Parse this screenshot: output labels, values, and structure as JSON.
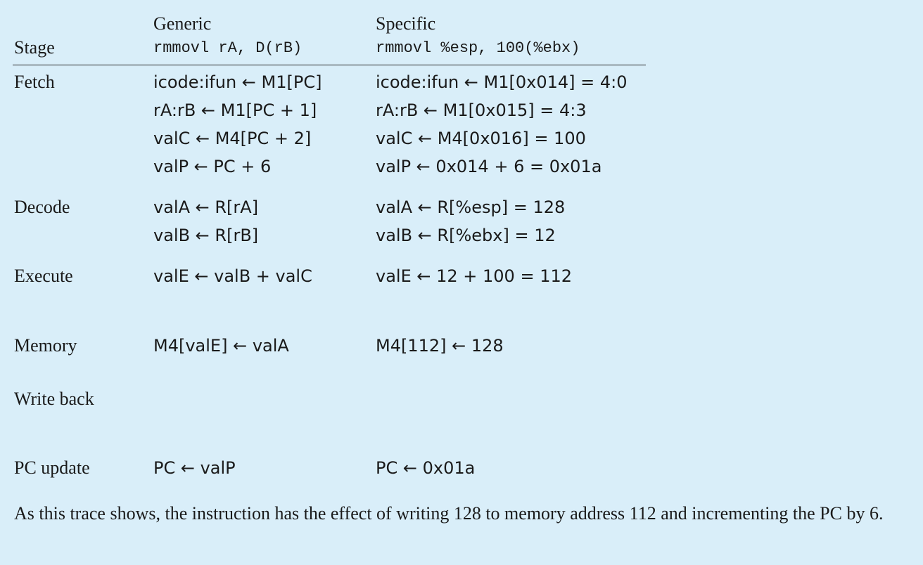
{
  "header": {
    "stage": "Stage",
    "generic_label": "Generic",
    "generic_instr": "rmmovl rA, D(rB)",
    "specific_label": "Specific",
    "specific_instr": "rmmovl %esp, 100(%ebx)"
  },
  "rows": [
    {
      "stage": "Fetch",
      "generic": [
        "icode:ifun ← M1[PC]",
        "rA:rB ← M1[PC + 1]",
        "valC ← M4[PC + 2]",
        "valP ← PC + 6"
      ],
      "specific": [
        "icode:ifun ← M1[0x014] = 4:0",
        "rA:rB ← M1[0x015] = 4:3",
        "valC ← M4[0x016] = 100",
        "valP ← 0x014 + 6 = 0x01a"
      ]
    },
    {
      "stage": "Decode",
      "generic": [
        "valA ← R[rA]",
        "valB ← R[rB]"
      ],
      "specific": [
        "valA ← R[%esp] = 128",
        "valB ← R[%ebx] = 12"
      ]
    },
    {
      "stage": "Execute",
      "generic": [
        "valE ← valB + valC"
      ],
      "specific": [
        "valE ← 12 + 100 = 112"
      ]
    },
    {
      "stage": "Memory",
      "generic": [
        "M4[valE] ← valA"
      ],
      "specific": [
        "M4[112] ← 128"
      ]
    },
    {
      "stage": "Write back",
      "generic": [],
      "specific": []
    },
    {
      "stage": "PC update",
      "generic": [
        "PC ← valP"
      ],
      "specific": [
        "PC ← 0x01a"
      ]
    }
  ],
  "note": "As this trace shows, the instruction has the effect of writing 128 to memory address 112 and incrementing the PC by 6."
}
